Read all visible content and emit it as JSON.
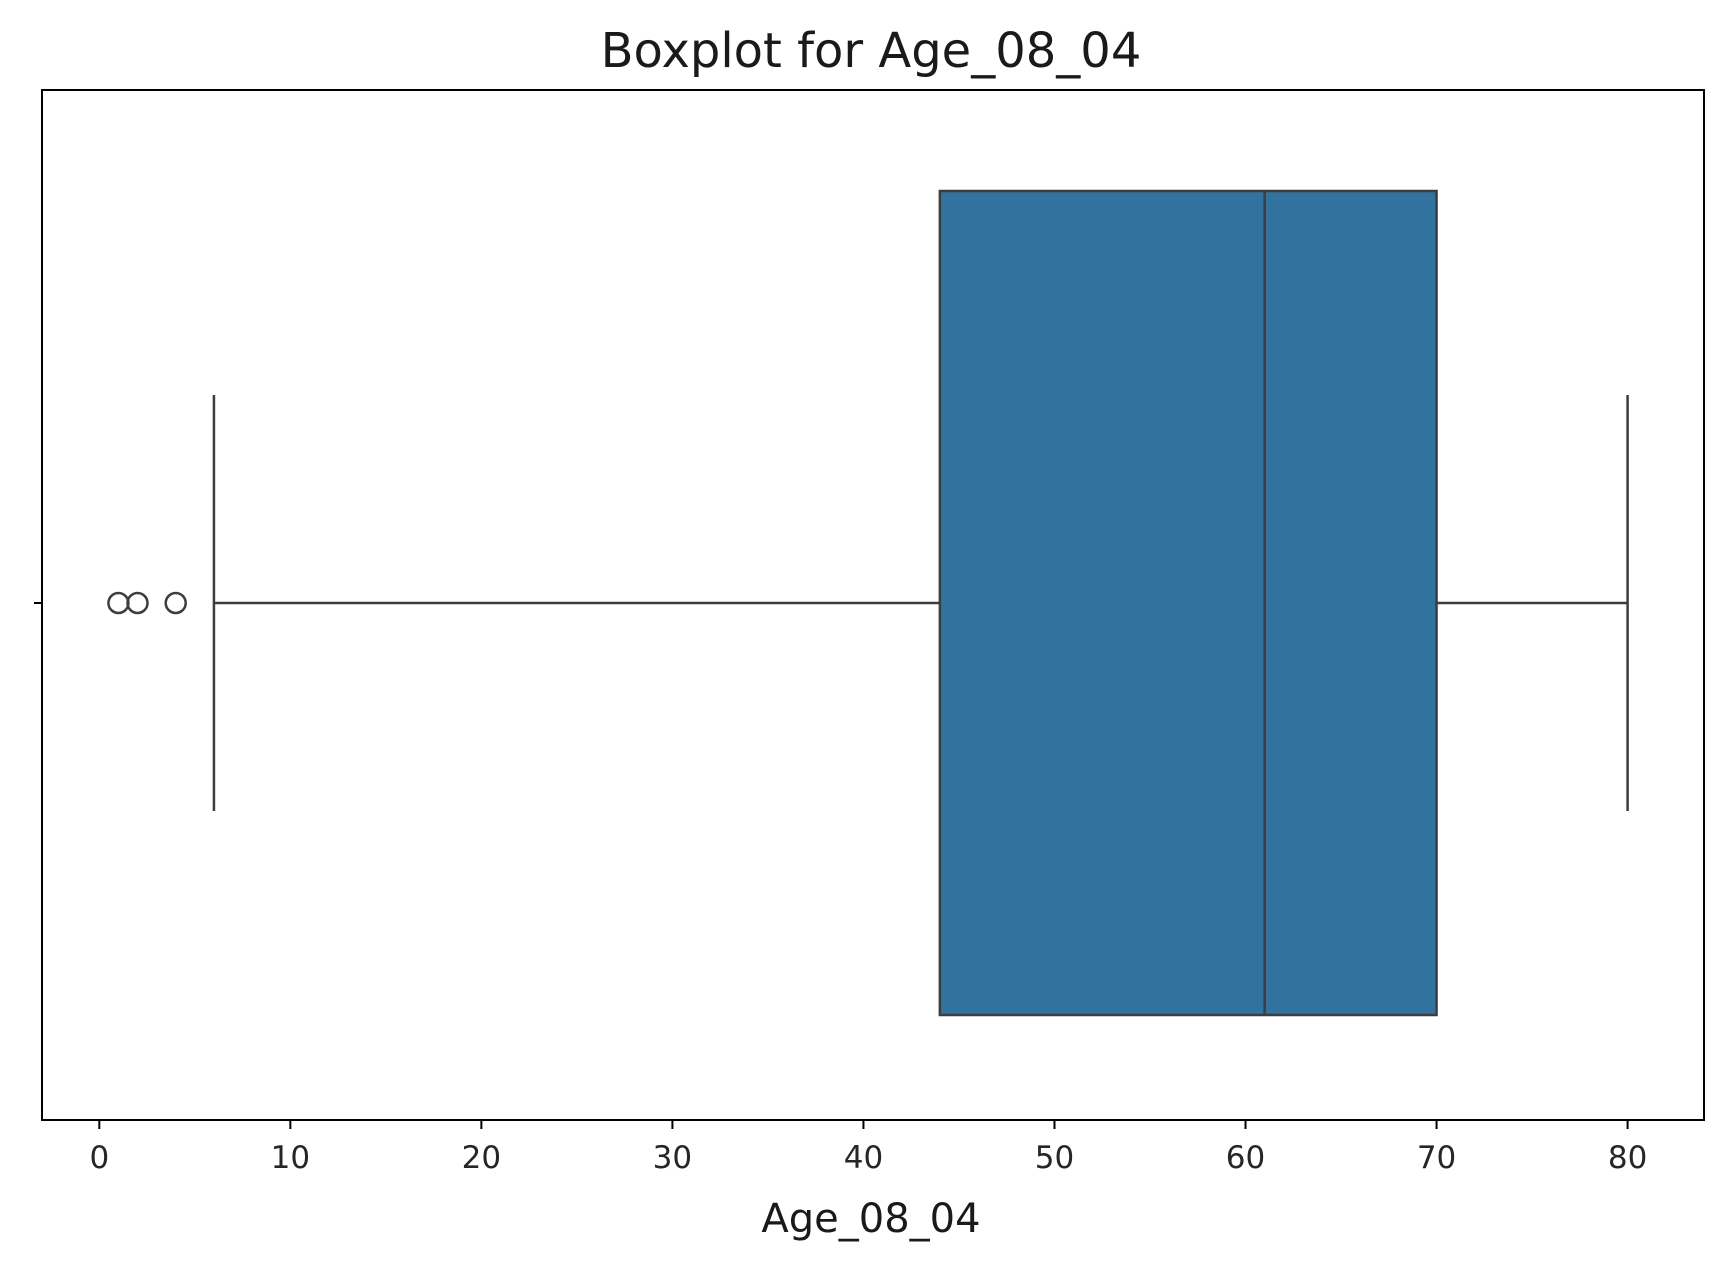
{
  "chart_data": {
    "type": "box",
    "title": "Boxplot for Age_08_04",
    "xlabel": "Age_08_04",
    "ylabel": "",
    "orientation": "horizontal",
    "xlim": [
      -3,
      84
    ],
    "x_ticks": [
      0,
      10,
      20,
      30,
      40,
      50,
      60,
      70,
      80
    ],
    "x_tick_labels": [
      "0",
      "10",
      "20",
      "30",
      "40",
      "50",
      "60",
      "70",
      "80"
    ],
    "grid": false,
    "legend": "none",
    "series": [
      {
        "whisker_low": 6,
        "q1": 44,
        "median": 61,
        "q3": 70,
        "whisker_high": 80,
        "outliers": [
          1,
          2,
          4
        ]
      }
    ],
    "colors": {
      "box_fill": "#31729f",
      "line": "#3d3d3d",
      "axes": "#000000"
    }
  }
}
